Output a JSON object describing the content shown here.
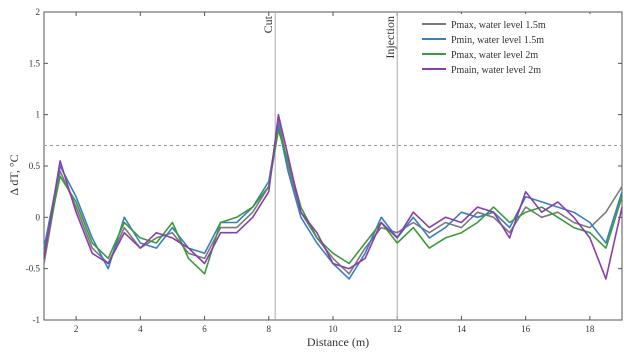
{
  "chart_data": {
    "type": "line",
    "xlabel": "Distance (m)",
    "ylabel": "Δ dT, °C",
    "xlim": [
      1,
      19
    ],
    "ylim": [
      -1,
      2
    ],
    "x_ticks": [
      2,
      4,
      6,
      8,
      10,
      12,
      14,
      16,
      18
    ],
    "y_ticks": [
      -1,
      -0.5,
      0,
      0.5,
      1,
      1.5,
      2
    ],
    "y_tick_labels": [
      "-1",
      "-0.5",
      "0",
      "0.5",
      "1",
      "1.5",
      "2"
    ],
    "grid": false,
    "legend_position": "top-right",
    "threshold_line": {
      "y": 0.7
    },
    "vertical_lines": [
      {
        "x": 8.2,
        "label": "Cut"
      },
      {
        "x": 12.0,
        "label": "Injection"
      }
    ],
    "x": [
      1.0,
      1.5,
      2.0,
      2.5,
      3.0,
      3.5,
      4.0,
      4.5,
      5.0,
      5.5,
      6.0,
      6.5,
      7.0,
      7.5,
      8.0,
      8.3,
      8.6,
      9.0,
      9.5,
      10.0,
      10.5,
      11.0,
      11.5,
      12.0,
      12.5,
      13.0,
      13.5,
      14.0,
      14.5,
      15.0,
      15.5,
      16.0,
      16.5,
      17.0,
      17.5,
      18.0,
      18.5,
      19.0
    ],
    "series": [
      {
        "name": "Pmax, water level 1.5m",
        "color": "#7a7a7a",
        "values": [
          -0.45,
          0.45,
          0.1,
          -0.3,
          -0.45,
          -0.1,
          -0.3,
          -0.2,
          -0.15,
          -0.35,
          -0.4,
          -0.1,
          -0.1,
          0.05,
          0.3,
          0.95,
          0.5,
          0.05,
          -0.2,
          -0.4,
          -0.55,
          -0.3,
          -0.1,
          -0.15,
          -0.05,
          -0.15,
          -0.05,
          -0.1,
          0.05,
          0.0,
          -0.15,
          0.1,
          0.0,
          0.05,
          -0.05,
          -0.1,
          0.05,
          0.3
        ]
      },
      {
        "name": "Pmin, water level 1.5m",
        "color": "#3a7fc1",
        "values": [
          -0.3,
          0.5,
          0.2,
          -0.2,
          -0.5,
          0.0,
          -0.25,
          -0.3,
          -0.1,
          -0.3,
          -0.35,
          -0.05,
          -0.05,
          0.1,
          0.35,
          0.9,
          0.45,
          0.0,
          -0.25,
          -0.45,
          -0.6,
          -0.35,
          0.0,
          -0.2,
          0.0,
          -0.2,
          -0.1,
          0.05,
          0.0,
          0.05,
          -0.1,
          0.2,
          0.15,
          0.1,
          0.05,
          -0.05,
          -0.25,
          0.25
        ]
      },
      {
        "name": "Pmax, water level 2m",
        "color": "#3c9a3c",
        "values": [
          -0.35,
          0.4,
          0.15,
          -0.25,
          -0.4,
          -0.05,
          -0.2,
          -0.25,
          -0.05,
          -0.4,
          -0.55,
          -0.05,
          0.0,
          0.1,
          0.3,
          0.85,
          0.55,
          0.1,
          -0.2,
          -0.35,
          -0.45,
          -0.25,
          -0.05,
          -0.25,
          -0.1,
          -0.3,
          -0.2,
          -0.15,
          -0.05,
          0.1,
          -0.05,
          0.05,
          0.1,
          0.0,
          -0.1,
          -0.15,
          -0.3,
          0.2
        ]
      },
      {
        "name": "Pmain, water level 2m",
        "color": "#8a3ea8",
        "values": [
          -0.4,
          0.55,
          0.05,
          -0.35,
          -0.45,
          -0.15,
          -0.3,
          -0.15,
          -0.2,
          -0.3,
          -0.45,
          -0.15,
          -0.15,
          0.0,
          0.25,
          1.0,
          0.6,
          0.05,
          -0.15,
          -0.45,
          -0.5,
          -0.4,
          -0.05,
          -0.2,
          0.05,
          -0.1,
          0.0,
          -0.05,
          0.1,
          0.05,
          -0.2,
          0.25,
          0.05,
          0.15,
          0.0,
          -0.2,
          -0.6,
          0.1
        ]
      }
    ]
  }
}
